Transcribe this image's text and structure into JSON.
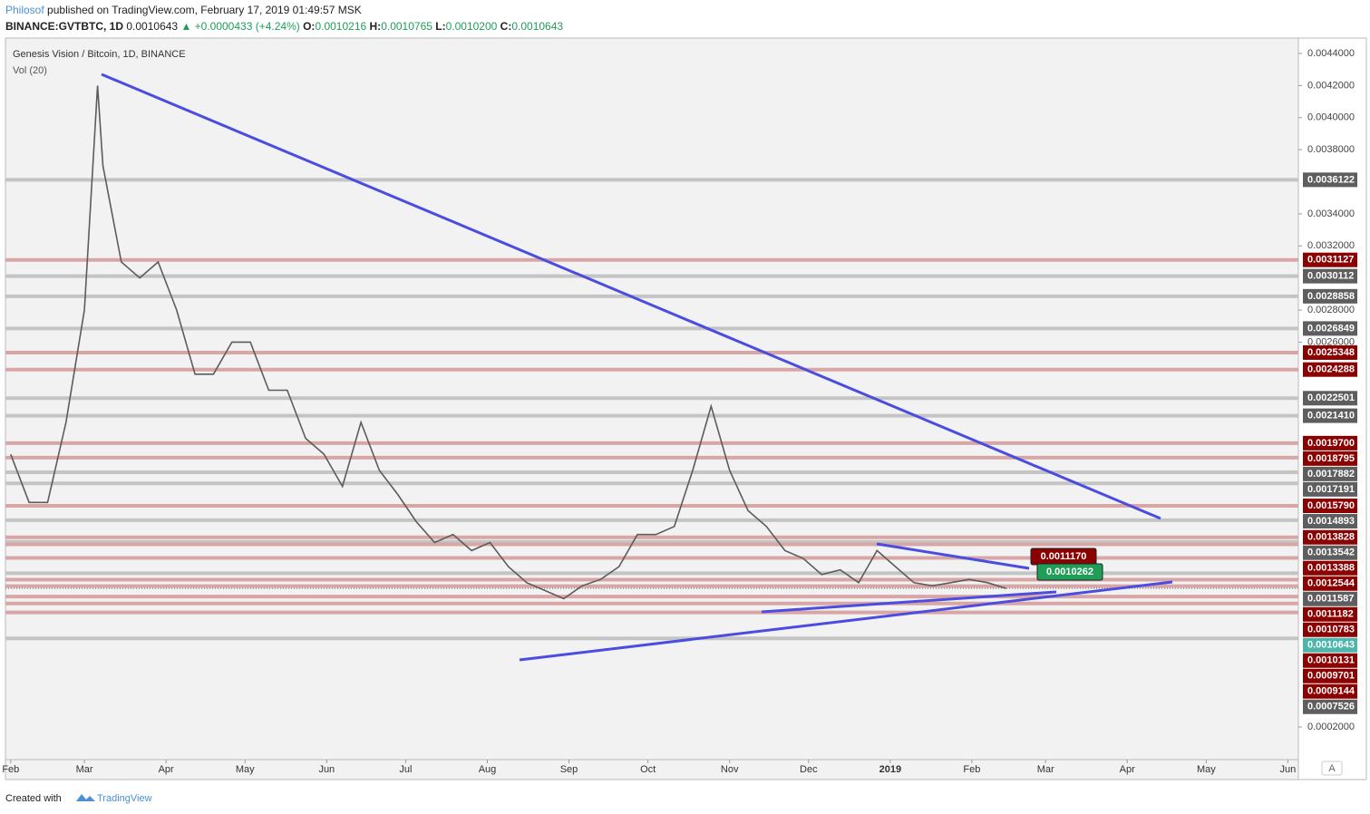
{
  "header": {
    "publisher": "Philosof",
    "published": "published on TradingView.com, February 17, 2019 01:49:57 MSK",
    "symbol": "BINANCE:GVTBTC, 1D",
    "last": "0.0010643",
    "change": "▲ +0.0000433 (+4.24%)",
    "open_label": "O:",
    "open": "0.0010216",
    "high_label": "H:",
    "high": "0.0010765",
    "low_label": "L:",
    "low": "0.0010200",
    "close_label": "C:",
    "close": "0.0010643"
  },
  "chart_data": {
    "type": "line",
    "title": "Genesis Vision / Bitcoin, 1D, BINANCE",
    "subtitle": "Vol (20)",
    "x": [
      "2018-02-01",
      "2018-02-08",
      "2018-02-15",
      "2018-02-22",
      "2018-03-01",
      "2018-03-06",
      "2018-03-08",
      "2018-03-15",
      "2018-03-22",
      "2018-03-29",
      "2018-04-05",
      "2018-04-12",
      "2018-04-19",
      "2018-04-26",
      "2018-05-03",
      "2018-05-10",
      "2018-05-17",
      "2018-05-24",
      "2018-05-31",
      "2018-06-07",
      "2018-06-14",
      "2018-06-21",
      "2018-06-28",
      "2018-07-05",
      "2018-07-12",
      "2018-07-19",
      "2018-07-26",
      "2018-08-02",
      "2018-08-09",
      "2018-08-16",
      "2018-08-23",
      "2018-08-30",
      "2018-09-06",
      "2018-09-13",
      "2018-09-20",
      "2018-09-27",
      "2018-10-04",
      "2018-10-11",
      "2018-10-18",
      "2018-10-25",
      "2018-11-01",
      "2018-11-08",
      "2018-11-15",
      "2018-11-22",
      "2018-11-29",
      "2018-12-06",
      "2018-12-13",
      "2018-12-20",
      "2018-12-27",
      "2019-01-03",
      "2019-01-10",
      "2019-01-17",
      "2019-01-24",
      "2019-01-31",
      "2019-02-07",
      "2019-02-14"
    ],
    "series": [
      {
        "name": "GVTBTC",
        "color": "#5c5c5c",
        "values": [
          0.0019,
          0.0016,
          0.0016,
          0.0021,
          0.0028,
          0.0042,
          0.0037,
          0.0031,
          0.003,
          0.0031,
          0.0028,
          0.0024,
          0.0024,
          0.0026,
          0.0026,
          0.0023,
          0.0023,
          0.002,
          0.0019,
          0.0017,
          0.0021,
          0.0018,
          0.00165,
          0.00148,
          0.00135,
          0.0014,
          0.0013,
          0.00135,
          0.0012,
          0.0011,
          0.00105,
          0.001,
          0.00108,
          0.00112,
          0.0012,
          0.0014,
          0.0014,
          0.00145,
          0.0018,
          0.0022,
          0.0018,
          0.00155,
          0.00145,
          0.0013,
          0.00125,
          0.00115,
          0.00118,
          0.0011,
          0.0013,
          0.0012,
          0.0011,
          0.00108,
          0.0011,
          0.00112,
          0.0011,
          0.001064
        ]
      }
    ],
    "xlim": [
      "2018-01-30",
      "2019-06-05"
    ],
    "xticks": [
      {
        "value": "2018-02-01",
        "label": "Feb"
      },
      {
        "value": "2018-03-01",
        "label": "Mar"
      },
      {
        "value": "2018-04-01",
        "label": "Apr"
      },
      {
        "value": "2018-05-01",
        "label": "May"
      },
      {
        "value": "2018-06-01",
        "label": "Jun"
      },
      {
        "value": "2018-07-01",
        "label": "Jul"
      },
      {
        "value": "2018-08-01",
        "label": "Aug"
      },
      {
        "value": "2018-09-01",
        "label": "Sep"
      },
      {
        "value": "2018-10-01",
        "label": "Oct"
      },
      {
        "value": "2018-11-01",
        "label": "Nov"
      },
      {
        "value": "2018-12-01",
        "label": "Dec"
      },
      {
        "value": "2019-01-01",
        "label": "2019"
      },
      {
        "value": "2019-02-01",
        "label": "Feb"
      },
      {
        "value": "2019-03-01",
        "label": "Mar"
      },
      {
        "value": "2019-04-01",
        "label": "Apr"
      },
      {
        "value": "2019-05-01",
        "label": "May"
      },
      {
        "value": "2019-06-01",
        "label": "Jun"
      }
    ],
    "ylim": [
      -0.000128,
      0.004496
    ],
    "yticks": [
      {
        "value": 0.0044,
        "label": "0.0044000"
      },
      {
        "value": 0.0042,
        "label": "0.0042000"
      },
      {
        "value": 0.004,
        "label": "0.0040000"
      },
      {
        "value": 0.0038,
        "label": "0.0038000"
      },
      {
        "value": 0.0034,
        "label": "0.0034000"
      },
      {
        "value": 0.0032,
        "label": "0.0032000"
      },
      {
        "value": 0.0028,
        "label": "0.0028000"
      },
      {
        "value": 0.0026,
        "label": "0.0026000"
      },
      {
        "value": 0.0002,
        "label": "0.0002000"
      }
    ],
    "level_groups": [
      {
        "color": "#c4c4c4",
        "badge": "#5e5e5e",
        "levels": [
          {
            "value": 0.0036122,
            "label": "0.0036122"
          },
          {
            "value": 0.0030112,
            "label": "0.0030112"
          },
          {
            "value": 0.0028858,
            "label": "0.0028858"
          },
          {
            "value": 0.0026849,
            "label": "0.0026849"
          },
          {
            "value": 0.0022501,
            "label": "0.0022501"
          },
          {
            "value": 0.002141,
            "label": "0.0021410"
          },
          {
            "value": 0.0017882,
            "label": "0.0017882"
          },
          {
            "value": 0.0017191,
            "label": "0.0017191"
          },
          {
            "value": 0.0014893,
            "label": "0.0014893"
          },
          {
            "value": 0.0013542,
            "label": "0.0013542"
          },
          {
            "value": 0.0011587,
            "label": "0.0011587"
          },
          {
            "value": 0.0007526,
            "label": "0.0007526"
          }
        ]
      },
      {
        "color": "#d9a6a6",
        "badge": "#8b0000",
        "levels": [
          {
            "value": 0.0031127,
            "label": "0.0031127"
          },
          {
            "value": 0.0025348,
            "label": "0.0025348"
          },
          {
            "value": 0.0024288,
            "label": "0.0024288"
          },
          {
            "value": 0.00197,
            "label": "0.0019700"
          },
          {
            "value": 0.0018795,
            "label": "0.0018795"
          },
          {
            "value": 0.001579,
            "label": "0.0015790"
          },
          {
            "value": 0.0013828,
            "label": "0.0013828"
          },
          {
            "value": 0.0013388,
            "label": "0.0013388"
          },
          {
            "value": 0.0012544,
            "label": "0.0012544"
          },
          {
            "value": 0.0011182,
            "label": "0.0011182"
          },
          {
            "value": 0.0010783,
            "label": "0.0010783"
          },
          {
            "value": 0.0010131,
            "label": "0.0010131"
          },
          {
            "value": 0.0009701,
            "label": "0.0009701"
          },
          {
            "value": 0.0009144,
            "label": "0.0009144"
          }
        ]
      }
    ],
    "last_price": {
      "value": 0.0010643,
      "label": "0.0010643",
      "color": "#4db6ac"
    },
    "annotations": [
      {
        "text": "0.0011170",
        "color": "#8b0000"
      },
      {
        "text": "0.0010262",
        "color": "#1e9e57"
      }
    ],
    "grid": false
  },
  "footer": {
    "created": "Created with",
    "brand": "TradingView",
    "scale_button": "A"
  }
}
